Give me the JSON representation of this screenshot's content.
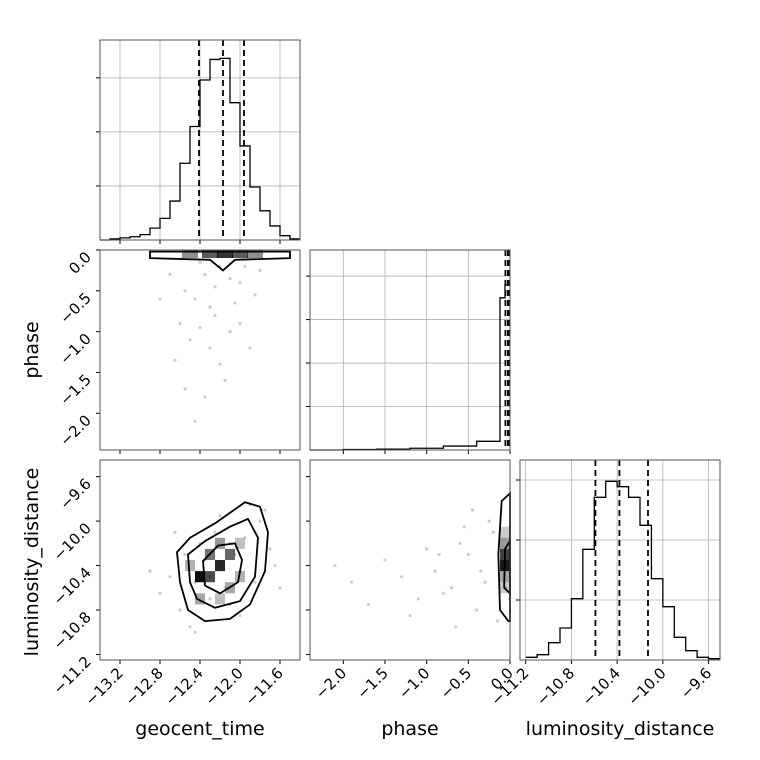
{
  "chart_data": [
    {
      "type": "histogram",
      "panel": "geocent_time-marginal",
      "parameter": "geocent_time",
      "xlim": [
        -13.4,
        -11.4
      ],
      "xticks": [
        -13.2,
        -12.8,
        -12.4,
        -12.0,
        -11.6
      ],
      "bin_edges": [
        -13.4,
        -13.3,
        -13.2,
        -13.1,
        -13.0,
        -12.9,
        -12.8,
        -12.7,
        -12.6,
        -12.5,
        -12.4,
        -12.3,
        -12.2,
        -12.1,
        -12.0,
        -11.9,
        -11.8,
        -11.7,
        -11.6,
        -11.5,
        -11.4
      ],
      "counts": [
        0,
        1,
        2,
        3,
        5,
        11,
        20,
        36,
        71,
        105,
        148,
        167,
        168,
        127,
        87,
        49,
        27,
        13,
        4,
        1
      ],
      "quantiles": [
        -12.41,
        -12.17,
        -11.96
      ],
      "ylim": [
        0,
        185
      ]
    },
    {
      "type": "histogram",
      "panel": "phase-marginal",
      "parameter": "phase",
      "xlim": [
        -2.4,
        0.0
      ],
      "xticks": [
        -2.0,
        -1.5,
        -1.0,
        -0.5,
        0.0
      ],
      "bin_edges": [
        -2.4,
        -2.0,
        -1.6,
        -1.2,
        -0.8,
        -0.4,
        -0.12,
        -0.06,
        0.0
      ],
      "counts": [
        0,
        1,
        2,
        4,
        9,
        20,
        350,
        380
      ],
      "quantiles": [
        -0.055,
        -0.025,
        -0.006
      ],
      "ylim": [
        0,
        460
      ]
    },
    {
      "type": "histogram",
      "panel": "luminosity_distance-marginal",
      "parameter": "luminosity_distance",
      "xlim": [
        -11.25,
        -9.5
      ],
      "xticks": [
        -11.2,
        -10.8,
        -10.4,
        -10.0,
        -9.6
      ],
      "bin_edges": [
        -11.2,
        -11.1,
        -11.0,
        -10.9,
        -10.8,
        -10.7,
        -10.6,
        -10.5,
        -10.4,
        -10.3,
        -10.2,
        -10.1,
        -10.0,
        -9.9,
        -9.8,
        -9.7,
        -9.6,
        -9.5
      ],
      "counts": [
        2,
        4,
        13,
        24,
        46,
        83,
        122,
        134,
        130,
        122,
        101,
        61,
        40,
        17,
        7,
        2,
        1
      ],
      "quantiles": [
        -10.59,
        -10.38,
        -10.13
      ],
      "ylim": [
        0,
        150
      ]
    },
    {
      "type": "scatter-contour",
      "panel": "geocent_time-phase",
      "x_parameter": "geocent_time",
      "y_parameter": "phase",
      "xlim": [
        -13.4,
        -11.4
      ],
      "ylim": [
        -2.45,
        0.0
      ],
      "yticks": [
        0.0,
        -0.5,
        -1.0,
        -1.5,
        -2.0
      ],
      "points": [
        [
          -12.17,
          -0.03
        ],
        [
          -12.35,
          -0.3
        ],
        [
          -12.0,
          -0.4
        ],
        [
          -12.45,
          -0.6
        ],
        [
          -12.25,
          -0.8
        ],
        [
          -12.1,
          -1.0
        ],
        [
          -12.55,
          -0.5
        ],
        [
          -11.95,
          -0.2
        ],
        [
          -12.3,
          -1.2
        ],
        [
          -12.6,
          -0.9
        ],
        [
          -12.05,
          -0.65
        ],
        [
          -12.4,
          -0.15
        ],
        [
          -12.2,
          -1.4
        ],
        [
          -11.85,
          -0.55
        ],
        [
          -12.7,
          -0.3
        ],
        [
          -12.15,
          -1.6
        ],
        [
          -12.5,
          -1.1
        ],
        [
          -12.35,
          -1.8
        ],
        [
          -12.0,
          -0.9
        ],
        [
          -12.65,
          -1.35
        ],
        [
          -11.8,
          -0.25
        ],
        [
          -12.25,
          -0.45
        ],
        [
          -12.45,
          -2.1
        ],
        [
          -12.1,
          -0.35
        ],
        [
          -12.3,
          -0.7
        ],
        [
          -12.8,
          -0.6
        ],
        [
          -11.9,
          -1.2
        ],
        [
          -12.55,
          -1.7
        ],
        [
          -12.2,
          -0.2
        ],
        [
          -12.4,
          -0.95
        ]
      ],
      "contour": [
        [
          -12.9,
          -0.02
        ],
        [
          -12.9,
          -0.1
        ],
        [
          -12.3,
          -0.12
        ],
        [
          -12.17,
          -0.25
        ],
        [
          -12.05,
          -0.12
        ],
        [
          -11.5,
          -0.1
        ],
        [
          -11.5,
          -0.02
        ]
      ]
    },
    {
      "type": "scatter-contour",
      "panel": "geocent_time-luminosity_distance",
      "x_parameter": "geocent_time",
      "y_parameter": "luminosity_distance",
      "xlim": [
        -13.4,
        -11.4
      ],
      "ylim": [
        -11.25,
        -9.45
      ],
      "yticks": [
        -11.2,
        -10.8,
        -10.4,
        -10.0,
        -9.6
      ],
      "points": [
        [
          -12.2,
          -10.4
        ],
        [
          -12.45,
          -10.55
        ],
        [
          -11.95,
          -10.15
        ],
        [
          -12.3,
          -10.7
        ],
        [
          -12.05,
          -10.3
        ],
        [
          -12.6,
          -10.8
        ],
        [
          -11.8,
          -10.0
        ],
        [
          -12.4,
          -10.2
        ],
        [
          -12.15,
          -10.6
        ],
        [
          -12.0,
          -10.45
        ],
        [
          -12.7,
          -10.5
        ],
        [
          -11.7,
          -10.25
        ],
        [
          -12.5,
          -10.95
        ],
        [
          -12.25,
          -10.1
        ],
        [
          -11.9,
          -9.85
        ],
        [
          -12.35,
          -10.35
        ],
        [
          -12.1,
          -10.75
        ],
        [
          -12.8,
          -10.65
        ],
        [
          -11.85,
          -10.55
        ],
        [
          -12.55,
          -10.3
        ],
        [
          -12.2,
          -9.95
        ],
        [
          -12.0,
          -10.85
        ],
        [
          -11.65,
          -10.4
        ],
        [
          -12.65,
          -10.1
        ],
        [
          -12.3,
          -10.5
        ],
        [
          -12.45,
          -11.0
        ],
        [
          -11.75,
          -9.9
        ],
        [
          -12.1,
          -10.2
        ],
        [
          -12.9,
          -10.45
        ],
        [
          -11.6,
          -10.6
        ]
      ],
      "contour_outer": [
        [
          -12.6,
          -10.55
        ],
        [
          -12.63,
          -10.28
        ],
        [
          -12.5,
          -10.15
        ],
        [
          -12.25,
          -10.02
        ],
        [
          -11.95,
          -9.83
        ],
        [
          -11.8,
          -9.87
        ],
        [
          -11.72,
          -10.1
        ],
        [
          -11.75,
          -10.45
        ],
        [
          -11.9,
          -10.75
        ],
        [
          -12.1,
          -10.88
        ],
        [
          -12.35,
          -10.9
        ],
        [
          -12.52,
          -10.8
        ]
      ],
      "contour_mid": [
        [
          -12.5,
          -10.55
        ],
        [
          -12.52,
          -10.3
        ],
        [
          -12.35,
          -10.18
        ],
        [
          -12.1,
          -10.05
        ],
        [
          -11.92,
          -9.98
        ],
        [
          -11.82,
          -10.15
        ],
        [
          -11.85,
          -10.5
        ],
        [
          -12.0,
          -10.72
        ],
        [
          -12.25,
          -10.78
        ],
        [
          -12.43,
          -10.7
        ]
      ],
      "contour_inner": [
        [
          -12.35,
          -10.58
        ],
        [
          -12.37,
          -10.36
        ],
        [
          -12.22,
          -10.22
        ],
        [
          -12.05,
          -10.2
        ],
        [
          -11.98,
          -10.35
        ],
        [
          -12.02,
          -10.55
        ],
        [
          -12.2,
          -10.65
        ]
      ]
    },
    {
      "type": "scatter-contour",
      "panel": "phase-luminosity_distance",
      "x_parameter": "phase",
      "y_parameter": "luminosity_distance",
      "xlim": [
        -2.4,
        0.0
      ],
      "ylim": [
        -11.25,
        -9.45
      ],
      "points": [
        [
          -0.1,
          -10.4
        ],
        [
          -0.3,
          -10.55
        ],
        [
          -0.5,
          -10.3
        ],
        [
          -0.7,
          -10.6
        ],
        [
          -0.9,
          -10.45
        ],
        [
          -1.1,
          -10.7
        ],
        [
          -0.2,
          -10.1
        ],
        [
          -0.4,
          -10.8
        ],
        [
          -0.6,
          -10.2
        ],
        [
          -0.8,
          -10.65
        ],
        [
          -1.3,
          -10.5
        ],
        [
          -1.5,
          -10.35
        ],
        [
          -1.7,
          -10.75
        ],
        [
          -0.25,
          -10.0
        ],
        [
          -0.45,
          -9.9
        ],
        [
          -0.15,
          -10.9
        ],
        [
          -1.0,
          -10.25
        ],
        [
          -1.9,
          -10.55
        ],
        [
          -0.35,
          -10.45
        ],
        [
          -0.65,
          -10.95
        ],
        [
          -2.1,
          -10.4
        ],
        [
          -0.05,
          -10.6
        ],
        [
          -1.2,
          -10.85
        ],
        [
          -0.55,
          -10.05
        ],
        [
          -0.85,
          -10.3
        ]
      ],
      "contour_outer": [
        [
          0.0,
          -9.75
        ],
        [
          -0.1,
          -9.82
        ],
        [
          -0.14,
          -10.3
        ],
        [
          -0.12,
          -10.8
        ],
        [
          -0.02,
          -10.9
        ],
        [
          0.0,
          -10.9
        ]
      ],
      "contour_inner": [
        [
          0.0,
          -10.18
        ],
        [
          -0.06,
          -10.25
        ],
        [
          -0.07,
          -10.6
        ],
        [
          0.0,
          -10.65
        ]
      ]
    }
  ],
  "axes": {
    "geocent_time": {
      "label": "geocent_time",
      "ticks": [
        "−13.2",
        "−12.8",
        "−12.4",
        "−12.0",
        "−11.6"
      ]
    },
    "phase": {
      "label": "phase",
      "xticks": [
        "−2.0",
        "−1.5",
        "−1.0",
        "−0.5",
        "0.0"
      ],
      "yticks": [
        "0.0",
        "−0.5",
        "−1.0",
        "−1.5",
        "−2.0"
      ]
    },
    "luminosity_distance": {
      "label": "luminosity_distance",
      "ticks": [
        "−11.2",
        "−10.8",
        "−10.4",
        "−10.0",
        "−9.6"
      ]
    }
  }
}
